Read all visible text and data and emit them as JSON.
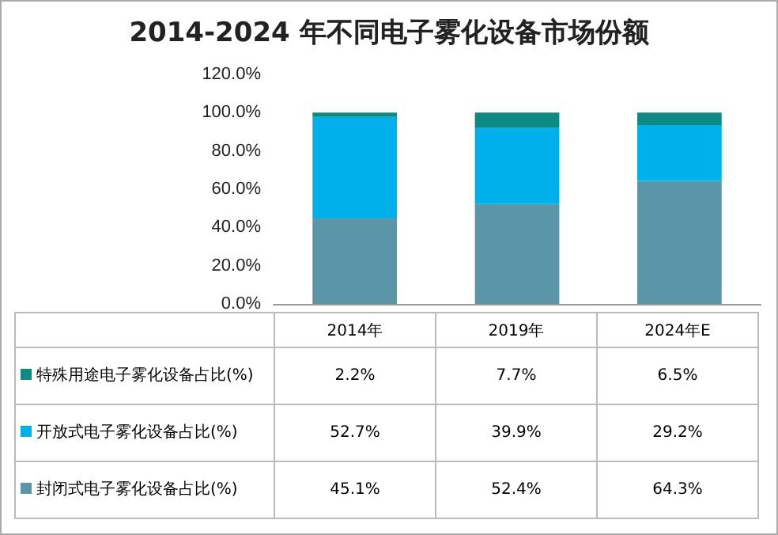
{
  "chart_data": {
    "type": "bar",
    "title": "2014-2024 年不同电子雾化设备市场份额",
    "categories": [
      "2014年",
      "2019年",
      "2024年E"
    ],
    "stacked": true,
    "legend": "bottom left",
    "grid": false,
    "series": [
      {
        "name": "封闭式电子雾化设备占比(%)",
        "color": "#5b95a8",
        "values": [
          45.1,
          52.4,
          64.3
        ],
        "value_labels": [
          "45.1%",
          "52.4%",
          "64.3%"
        ]
      },
      {
        "name": "开放式电子雾化设备占比(%)",
        "color": "#00b0ea",
        "values": [
          52.7,
          39.9,
          29.2
        ],
        "value_labels": [
          "52.7%",
          "39.9%",
          "29.2%"
        ]
      },
      {
        "name": "特殊用途电子雾化设备占比(%)",
        "color": "#0e8a84",
        "values": [
          2.2,
          7.7,
          6.5
        ],
        "value_labels": [
          "2.2%",
          "7.7%",
          "6.5%"
        ]
      }
    ],
    "ylim": [
      0,
      120
    ],
    "yticks": [
      {
        "value": 0,
        "label": "0.0%"
      },
      {
        "value": 20,
        "label": "20.0%"
      },
      {
        "value": 40,
        "label": "40.0%"
      },
      {
        "value": 60,
        "label": "60.0%"
      },
      {
        "value": 80,
        "label": "80.0%"
      },
      {
        "value": 100,
        "label": "100.0%"
      },
      {
        "value": 120,
        "label": "120.0%"
      }
    ]
  }
}
